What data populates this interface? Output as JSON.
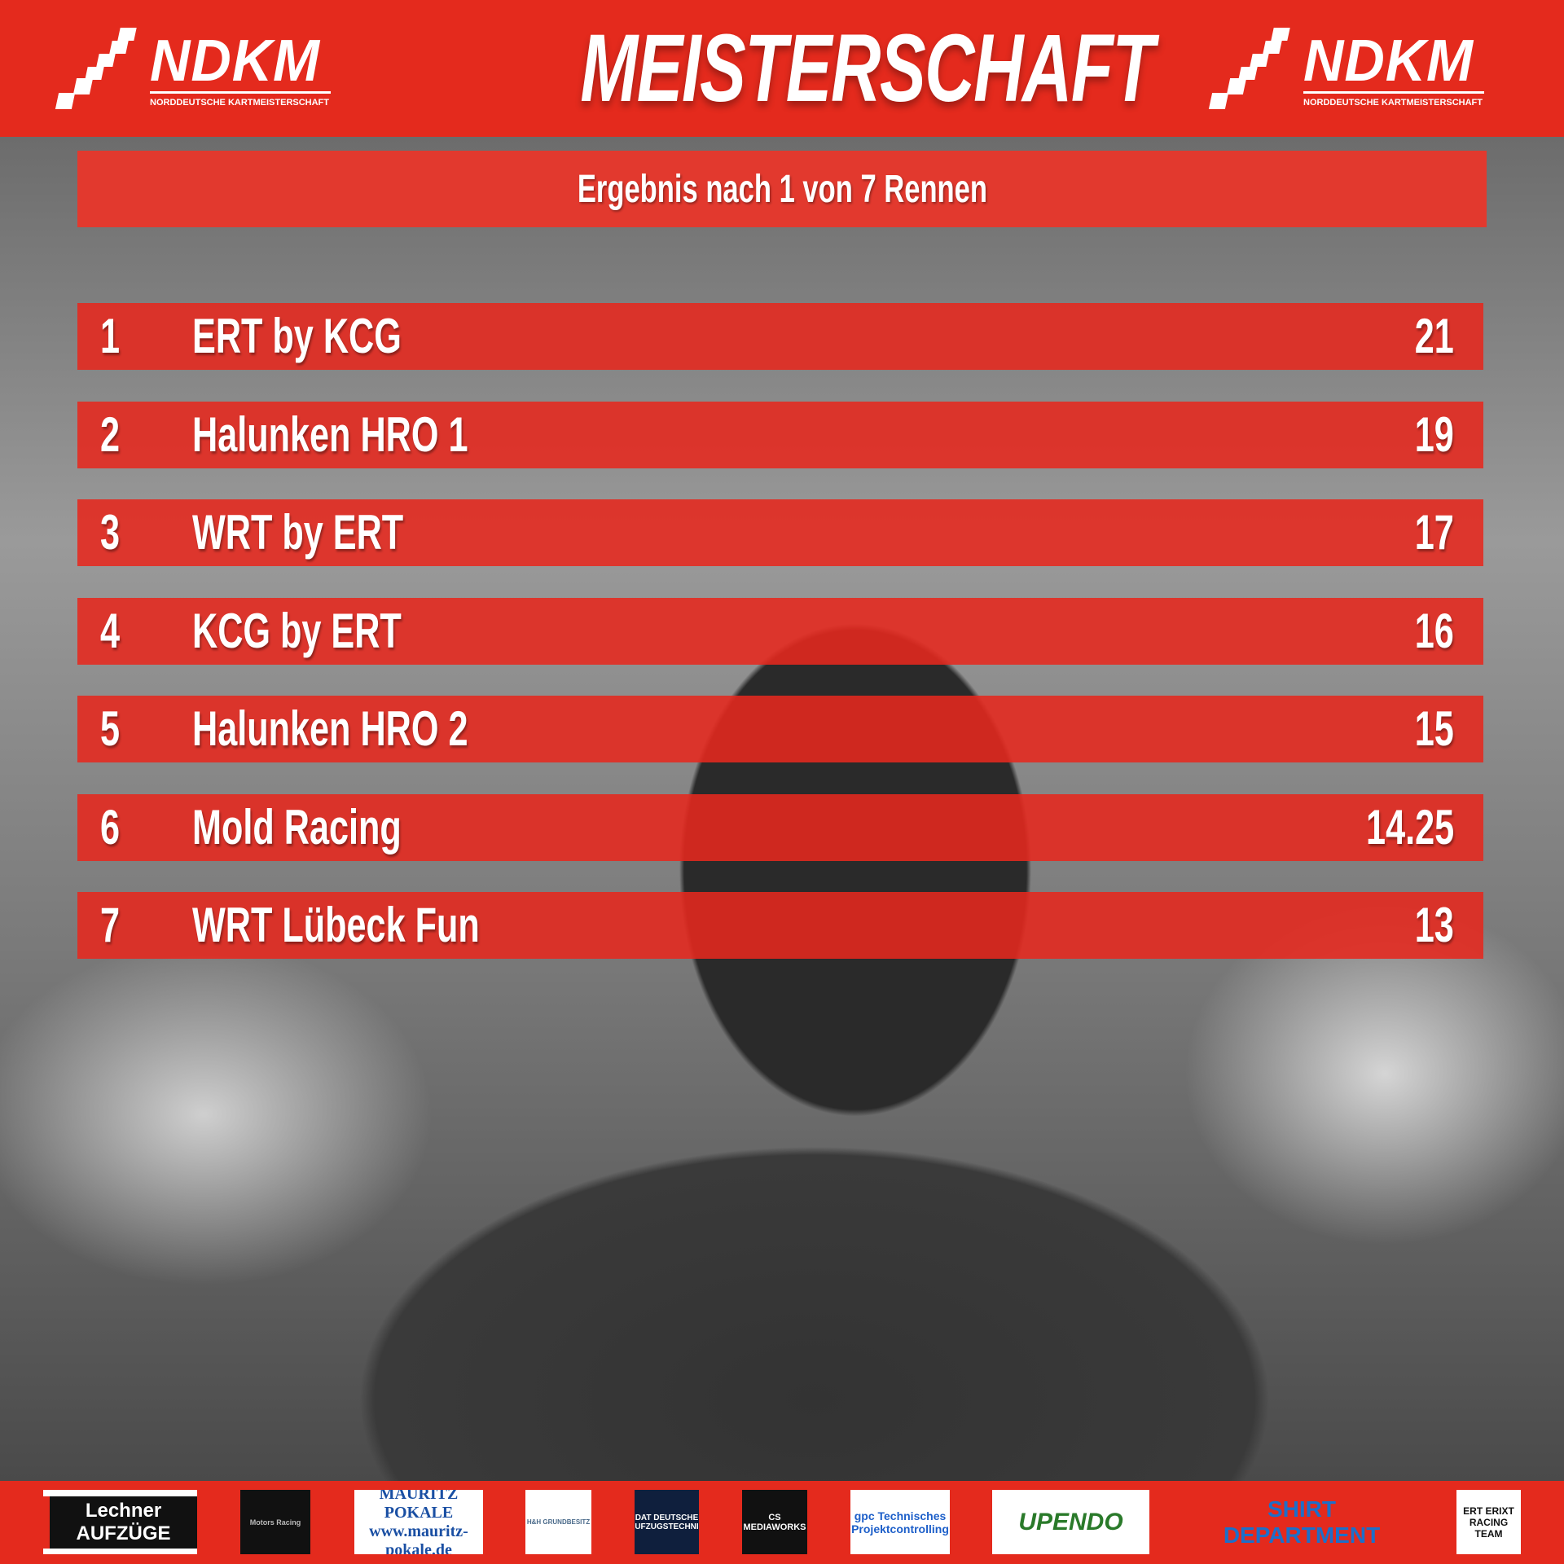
{
  "header": {
    "title": "MEISTERSCHAFT",
    "logo_text": "NDKM",
    "logo_subtitle": "NORDDEUTSCHE KARTMEISTERSCHAFT",
    "background_color": "#e42a1d"
  },
  "subtitle": "Ergebnis nach 1 von 7 Rennen",
  "standings": [
    {
      "rank": "1",
      "team": "ERT by KCG",
      "points": "21"
    },
    {
      "rank": "2",
      "team": "Halunken HRO 1",
      "points": "19"
    },
    {
      "rank": "3",
      "team": "WRT by ERT",
      "points": "17"
    },
    {
      "rank": "4",
      "team": "KCG by ERT",
      "points": "16"
    },
    {
      "rank": "5",
      "team": "Halunken HRO 2",
      "points": "15"
    },
    {
      "rank": "6",
      "team": "Mold Racing",
      "points": "14.25"
    },
    {
      "rank": "7",
      "team": "WRT Lübeck Fun",
      "points": "13"
    }
  ],
  "sponsors": [
    "Lechner AUFZÜGE",
    "Motors Racing",
    "MAURITZ POKALE www.mauritz-pokale.de",
    "H&H GRUNDBESITZ",
    "DAT DEUTSCHE AUFZUGSTECHNIK",
    "CS MEDIAWORKS",
    "gpc Technisches Projektcontrolling",
    "UPENDO",
    "SHIRT DEPARTMENT",
    "ERT ERIXT RACING TEAM"
  ]
}
